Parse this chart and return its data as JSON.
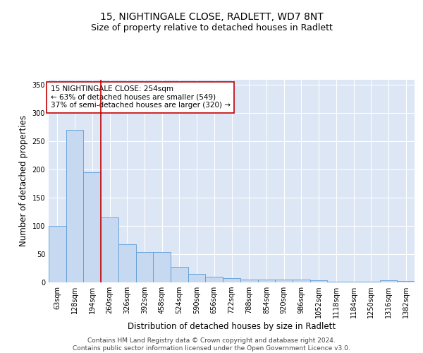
{
  "title_line1": "15, NIGHTINGALE CLOSE, RADLETT, WD7 8NT",
  "title_line2": "Size of property relative to detached houses in Radlett",
  "xlabel": "Distribution of detached houses by size in Radlett",
  "ylabel": "Number of detached properties",
  "categories": [
    "63sqm",
    "128sqm",
    "194sqm",
    "260sqm",
    "326sqm",
    "392sqm",
    "458sqm",
    "524sqm",
    "590sqm",
    "656sqm",
    "722sqm",
    "788sqm",
    "854sqm",
    "920sqm",
    "986sqm",
    "1052sqm",
    "1118sqm",
    "1184sqm",
    "1250sqm",
    "1316sqm",
    "1382sqm"
  ],
  "values": [
    100,
    270,
    195,
    115,
    67,
    54,
    54,
    27,
    15,
    10,
    7,
    5,
    5,
    5,
    5,
    4,
    1,
    1,
    1,
    4,
    3
  ],
  "bar_color": "#c6d9f0",
  "bar_edge_color": "#5b9bd5",
  "vline_color": "#c00000",
  "vline_x_index": 2.5,
  "annotation_text": "15 NIGHTINGALE CLOSE: 254sqm\n← 63% of detached houses are smaller (549)\n37% of semi-detached houses are larger (320) →",
  "annotation_box_edgecolor": "#c00000",
  "ylim": [
    0,
    360
  ],
  "yticks": [
    0,
    50,
    100,
    150,
    200,
    250,
    300,
    350
  ],
  "plot_bg_color": "#dce6f5",
  "footer_text": "Contains HM Land Registry data © Crown copyright and database right 2024.\nContains public sector information licensed under the Open Government Licence v3.0.",
  "title_fontsize": 10,
  "subtitle_fontsize": 9,
  "xlabel_fontsize": 8.5,
  "ylabel_fontsize": 8.5,
  "tick_fontsize": 7,
  "annotation_fontsize": 7.5,
  "footer_fontsize": 6.5
}
